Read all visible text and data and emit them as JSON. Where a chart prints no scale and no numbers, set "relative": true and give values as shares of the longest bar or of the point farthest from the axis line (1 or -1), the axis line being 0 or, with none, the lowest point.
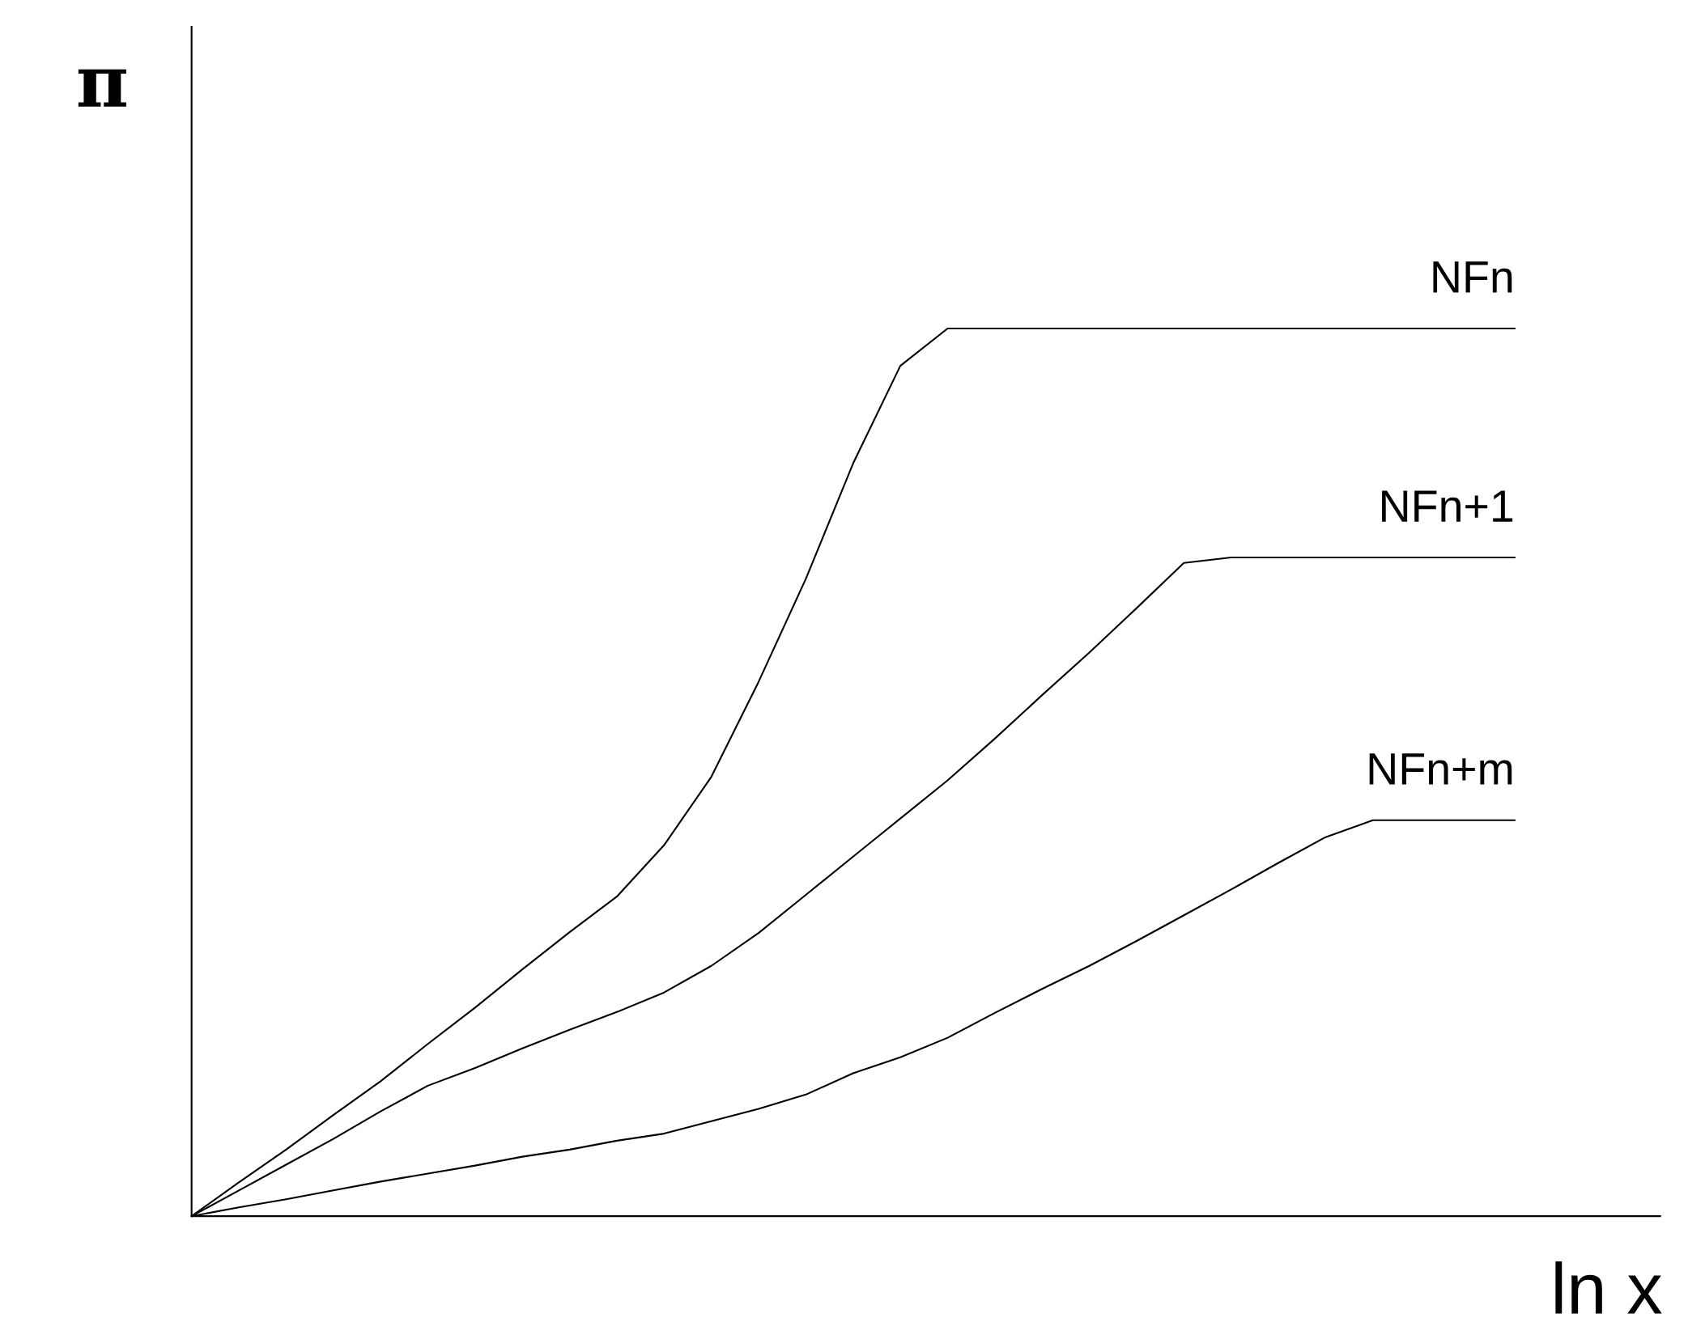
{
  "chart_data": {
    "type": "line",
    "relative": true,
    "xlabel": "ln x",
    "ylabel": "π",
    "legend": false,
    "marker": "none",
    "line_style": "solid",
    "categories": [
      null,
      null,
      null,
      null,
      null,
      null,
      null,
      null,
      null,
      null,
      null,
      null,
      null,
      null,
      null,
      null,
      null,
      null,
      null,
      null,
      null,
      null,
      null,
      null,
      null,
      null,
      null,
      null,
      null
    ],
    "series": [
      {
        "name": "NFn",
        "color": "#000000",
        "values": [
          0,
          0.038,
          0.075,
          0.114,
          0.152,
          0.194,
          0.235,
          0.278,
          0.32,
          0.36,
          0.418,
          0.495,
          0.602,
          0.718,
          0.848,
          0.958,
          1,
          1,
          1,
          1,
          1,
          1,
          1,
          1,
          1,
          1,
          1,
          1,
          1
        ]
      },
      {
        "name": "NFn+1",
        "color": "#000000",
        "values": [
          0,
          0.029,
          0.058,
          0.087,
          0.118,
          0.147,
          0.167,
          0.189,
          0.21,
          0.23,
          0.252,
          0.282,
          0.319,
          0.362,
          0.405,
          0.448,
          0.491,
          0.538,
          0.587,
          0.635,
          0.685,
          0.736,
          0.742,
          0.742,
          0.742,
          0.742,
          0.742,
          0.742,
          0.742
        ]
      },
      {
        "name": "NFn+m",
        "color": "#000000",
        "values": [
          0,
          0.01,
          0.019,
          0.029,
          0.039,
          0.048,
          0.057,
          0.067,
          0.075,
          0.085,
          0.093,
          0.107,
          0.121,
          0.137,
          0.161,
          0.179,
          0.201,
          0.229,
          0.256,
          0.282,
          0.31,
          0.339,
          0.368,
          0.398,
          0.427,
          0.446,
          0.446,
          0.446,
          0.446
        ]
      }
    ]
  }
}
